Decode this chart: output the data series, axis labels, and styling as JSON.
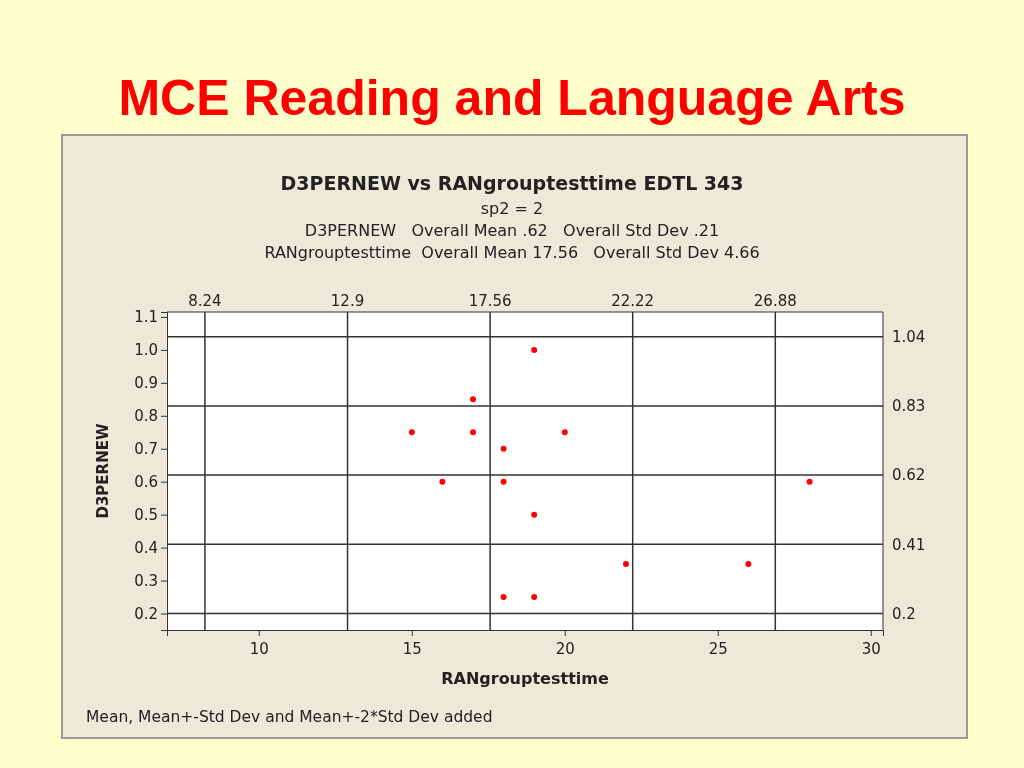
{
  "chart_data": {
    "type": "scatter",
    "title": "MCE Reading and Language Arts",
    "subtitle": "D3PERNEW vs RANgrouptesttime EDTL 343\nsp2 = 2\nD3PERNEW   Overall Mean .62   Overall Std Dev .21\nRANgrouptesttime  Overall Mean 17.56   Overall Std Dev 4.66",
    "xlabel": "RANgrouptesttime",
    "ylabel": "D3PERNEW",
    "annotations": [
      "Mean, Mean+-Std Dev and Mean+-2*Std Dev added"
    ],
    "x": [
      15,
      16,
      17,
      17,
      18,
      18,
      18,
      19,
      19,
      19,
      20,
      22,
      26,
      28
    ],
    "series": [
      {
        "color": "#ff0000",
        "values": [
          0.75,
          0.6,
          0.85,
          0.75,
          0.7,
          0.6,
          0.25,
          1.0,
          0.5,
          0.25,
          0.75,
          0.35,
          0.35,
          0.6
        ]
      }
    ],
    "xlim": [
      7.0,
      30.4
    ],
    "ylim": [
      0.15,
      1.115
    ],
    "xticks": [
      10,
      15,
      20,
      25,
      30
    ],
    "yticks": [
      {
        "value": 0.2,
        "label": "0.2"
      },
      {
        "value": 0.3,
        "label": "0.3"
      },
      {
        "value": 0.4,
        "label": "0.4"
      },
      {
        "value": 0.5,
        "label": "0.5"
      },
      {
        "value": 0.6,
        "label": "0.6"
      },
      {
        "value": 0.7,
        "label": "0.7"
      },
      {
        "value": 0.8,
        "label": "0.8"
      },
      {
        "value": 0.9,
        "label": "0.9"
      },
      {
        "value": 1.0,
        "label": "1.0"
      },
      {
        "value": 1.1,
        "label": "1.1"
      }
    ],
    "ref_lines": [
      {
        "axis": "x",
        "value": 8.24,
        "label": "8.24"
      },
      {
        "axis": "x",
        "value": 12.9,
        "label": "12.9"
      },
      {
        "axis": "x",
        "value": 17.56,
        "label": "17.56"
      },
      {
        "axis": "x",
        "value": 22.22,
        "label": "22.22"
      },
      {
        "axis": "x",
        "value": 26.88,
        "label": "26.88"
      },
      {
        "axis": "y",
        "value": 1.04,
        "label": "1.04"
      },
      {
        "axis": "y",
        "value": 0.83,
        "label": "0.83"
      },
      {
        "axis": "y",
        "value": 0.62,
        "label": "0.62"
      },
      {
        "axis": "y",
        "value": 0.41,
        "label": "0.41"
      },
      {
        "axis": "y",
        "value": 0.2,
        "label": "0.2"
      }
    ],
    "grid": false,
    "marker": "circle"
  }
}
